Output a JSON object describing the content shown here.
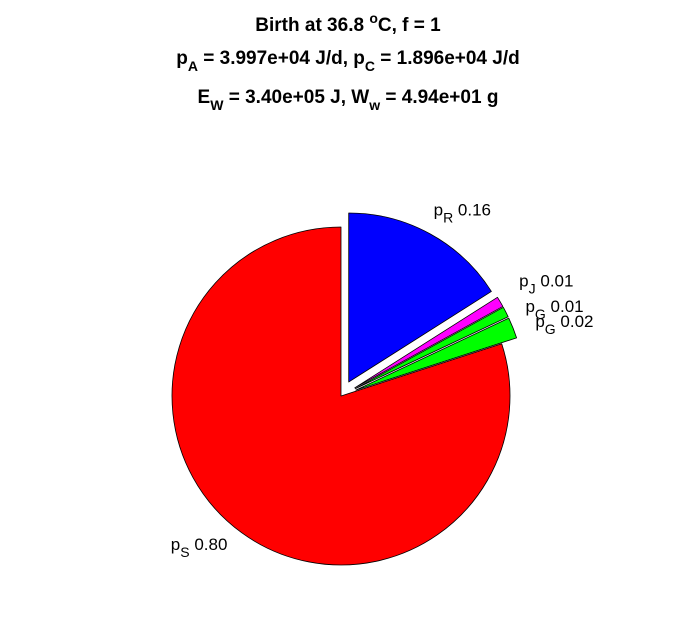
{
  "chart_data": {
    "type": "pie",
    "title_lines": [
      {
        "parts": [
          {
            "t": "Birth at 36.8 "
          },
          {
            "t": "o",
            "pos": "sup"
          },
          {
            "t": "C, f = 1"
          }
        ]
      },
      {
        "parts": [
          {
            "t": "p"
          },
          {
            "t": "A",
            "pos": "sub"
          },
          {
            "t": " = 3.997e+04 J/d, p"
          },
          {
            "t": "C",
            "pos": "sub"
          },
          {
            "t": " = 1.896e+04 J/d"
          }
        ]
      },
      {
        "parts": [
          {
            "t": "E"
          },
          {
            "t": "W",
            "pos": "sub"
          },
          {
            "t": " = 3.40e+05 J, W"
          },
          {
            "t": "w",
            "pos": "sub"
          },
          {
            "t": " = 4.94e+01 g"
          }
        ]
      }
    ],
    "slices": [
      {
        "name": "p",
        "sub": "R",
        "value": 0.16,
        "value_label": "0.16",
        "color": "#0000ff",
        "exploded": true
      },
      {
        "name": "p",
        "sub": "J",
        "value": 0.01,
        "value_label": "0.01",
        "color": "#ff00ff",
        "exploded": true
      },
      {
        "name": "p",
        "sub": "G",
        "value": 0.01,
        "value_label": "0.01",
        "color": "#00ff00",
        "exploded": true
      },
      {
        "name": "p",
        "sub": "G",
        "value": 0.02,
        "value_label": "0.02",
        "color": "#00ff00",
        "exploded": true
      },
      {
        "name": "p",
        "sub": "S",
        "value": 0.8,
        "value_label": "0.80",
        "color": "#ff0000",
        "exploded": false
      }
    ]
  }
}
